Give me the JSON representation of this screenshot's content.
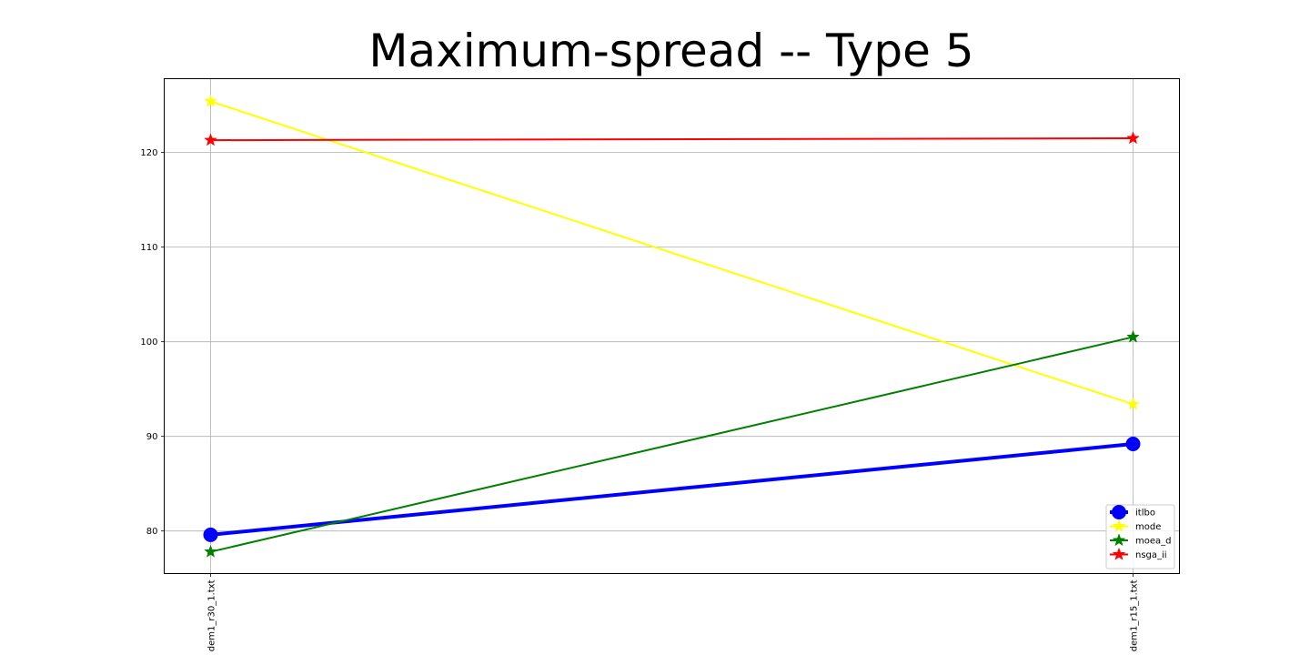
{
  "chart_data": {
    "type": "line",
    "title": "Maximum-spread -- Type 5",
    "xlabel": "",
    "ylabel": "",
    "categories": [
      "dem1_r30_1.txt",
      "dem1_r15_1.txt"
    ],
    "ylim": [
      75.5,
      127.8
    ],
    "yticks": [
      80,
      90,
      100,
      110,
      120
    ],
    "grid": true,
    "legend_position": "bottom-right",
    "series": [
      {
        "name": "itlbo",
        "values": [
          79.6,
          89.2
        ],
        "color": "#0000ff",
        "marker": "circle",
        "line_width": "thick"
      },
      {
        "name": "mode",
        "values": [
          125.4,
          93.4
        ],
        "color": "#ffff00",
        "marker": "star",
        "line_width": "normal"
      },
      {
        "name": "moea_d",
        "values": [
          77.8,
          100.5
        ],
        "color": "#008000",
        "marker": "star",
        "line_width": "normal"
      },
      {
        "name": "nsga_ii",
        "values": [
          121.3,
          121.5
        ],
        "color": "#ff0000",
        "marker": "star",
        "line_width": "normal"
      }
    ]
  }
}
